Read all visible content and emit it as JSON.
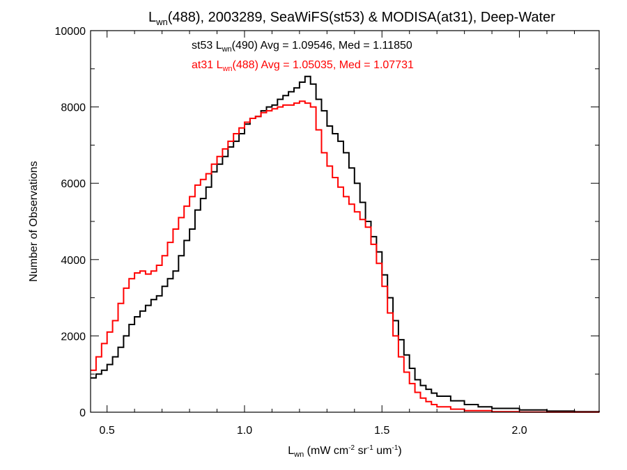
{
  "chart_data": {
    "type": "line",
    "title": {
      "pre": "L",
      "sub": "wn",
      "post": "(488), 2003289, SeaWiFS(st53) & MODISA(at31), Deep-Water"
    },
    "xlabel": {
      "pre": "L",
      "sub": "wn",
      "mid1": " (mW cm",
      "sup1": "-2",
      "mid2": " sr",
      "sup2": "-1",
      "mid3": " um",
      "sup3": "-1",
      "post": ")"
    },
    "ylabel": "Number of Observations",
    "xlim": [
      0.44,
      2.29
    ],
    "ylim": [
      0,
      10000
    ],
    "xticks": [
      0.5,
      1.0,
      1.5,
      2.0
    ],
    "xtick_labels": [
      "0.5",
      "1.0",
      "1.5",
      "2.0"
    ],
    "yticks": [
      0,
      2000,
      4000,
      6000,
      8000,
      10000
    ],
    "ytick_labels": [
      "0",
      "2000",
      "4000",
      "6000",
      "8000",
      "10000"
    ],
    "grid": false,
    "step": "histogram",
    "annotations": [
      {
        "pre": "st53 L",
        "sub": "wn",
        "post": "(490) Avg = 1.09546, Med = 1.11850",
        "color": "#000000"
      },
      {
        "pre": "at31 L",
        "sub": "wn",
        "post": "(488) Avg = 1.05035, Med = 1.07731",
        "color": "#ff0000"
      }
    ],
    "series": [
      {
        "color": "#000000",
        "x": [
          0.44,
          0.46,
          0.48,
          0.5,
          0.52,
          0.54,
          0.56,
          0.58,
          0.6,
          0.62,
          0.64,
          0.66,
          0.68,
          0.7,
          0.72,
          0.74,
          0.76,
          0.78,
          0.8,
          0.82,
          0.84,
          0.86,
          0.88,
          0.9,
          0.92,
          0.94,
          0.96,
          0.98,
          1.0,
          1.02,
          1.04,
          1.06,
          1.08,
          1.1,
          1.12,
          1.14,
          1.16,
          1.18,
          1.2,
          1.22,
          1.24,
          1.26,
          1.28,
          1.3,
          1.32,
          1.34,
          1.36,
          1.38,
          1.4,
          1.42,
          1.44,
          1.46,
          1.48,
          1.5,
          1.52,
          1.54,
          1.56,
          1.58,
          1.6,
          1.62,
          1.64,
          1.66,
          1.68,
          1.7,
          1.75,
          1.8,
          1.85,
          1.9,
          2.0,
          2.1,
          2.2,
          2.29
        ],
        "y": [
          900,
          1000,
          1100,
          1250,
          1450,
          1700,
          2000,
          2300,
          2500,
          2650,
          2800,
          2950,
          3050,
          3300,
          3500,
          3700,
          4100,
          4500,
          4800,
          5300,
          5600,
          5900,
          6300,
          6500,
          6700,
          6950,
          7100,
          7300,
          7550,
          7700,
          7750,
          7900,
          8000,
          8050,
          8200,
          8300,
          8400,
          8500,
          8650,
          8800,
          8600,
          8200,
          7900,
          7500,
          7300,
          7100,
          6800,
          6400,
          6000,
          5500,
          5000,
          4600,
          4200,
          3600,
          3000,
          2400,
          1900,
          1500,
          1150,
          850,
          700,
          600,
          500,
          420,
          300,
          200,
          140,
          100,
          60,
          30,
          15,
          5
        ]
      },
      {
        "color": "#ff0000",
        "x": [
          0.44,
          0.46,
          0.48,
          0.5,
          0.52,
          0.54,
          0.56,
          0.58,
          0.6,
          0.62,
          0.64,
          0.66,
          0.68,
          0.7,
          0.72,
          0.74,
          0.76,
          0.78,
          0.8,
          0.82,
          0.84,
          0.86,
          0.88,
          0.9,
          0.92,
          0.94,
          0.96,
          0.98,
          1.0,
          1.02,
          1.04,
          1.06,
          1.08,
          1.1,
          1.12,
          1.14,
          1.16,
          1.18,
          1.2,
          1.22,
          1.24,
          1.26,
          1.28,
          1.3,
          1.32,
          1.34,
          1.36,
          1.38,
          1.4,
          1.42,
          1.44,
          1.46,
          1.48,
          1.5,
          1.52,
          1.54,
          1.56,
          1.58,
          1.6,
          1.62,
          1.64,
          1.66,
          1.68,
          1.7,
          1.75,
          1.8,
          1.9,
          2.0,
          2.1,
          2.29
        ],
        "y": [
          1100,
          1450,
          1800,
          2100,
          2400,
          2850,
          3250,
          3500,
          3650,
          3700,
          3620,
          3700,
          3850,
          4100,
          4450,
          4800,
          5100,
          5400,
          5650,
          5950,
          6100,
          6250,
          6500,
          6700,
          6900,
          7100,
          7300,
          7450,
          7600,
          7700,
          7750,
          7850,
          7900,
          7950,
          8000,
          8050,
          8050,
          8100,
          8150,
          8100,
          8000,
          7400,
          6800,
          6450,
          6150,
          5900,
          5650,
          5450,
          5250,
          5050,
          4850,
          4400,
          3900,
          3300,
          2600,
          2000,
          1450,
          1050,
          750,
          520,
          370,
          280,
          200,
          140,
          80,
          40,
          15,
          5,
          2,
          0
        ]
      }
    ]
  }
}
